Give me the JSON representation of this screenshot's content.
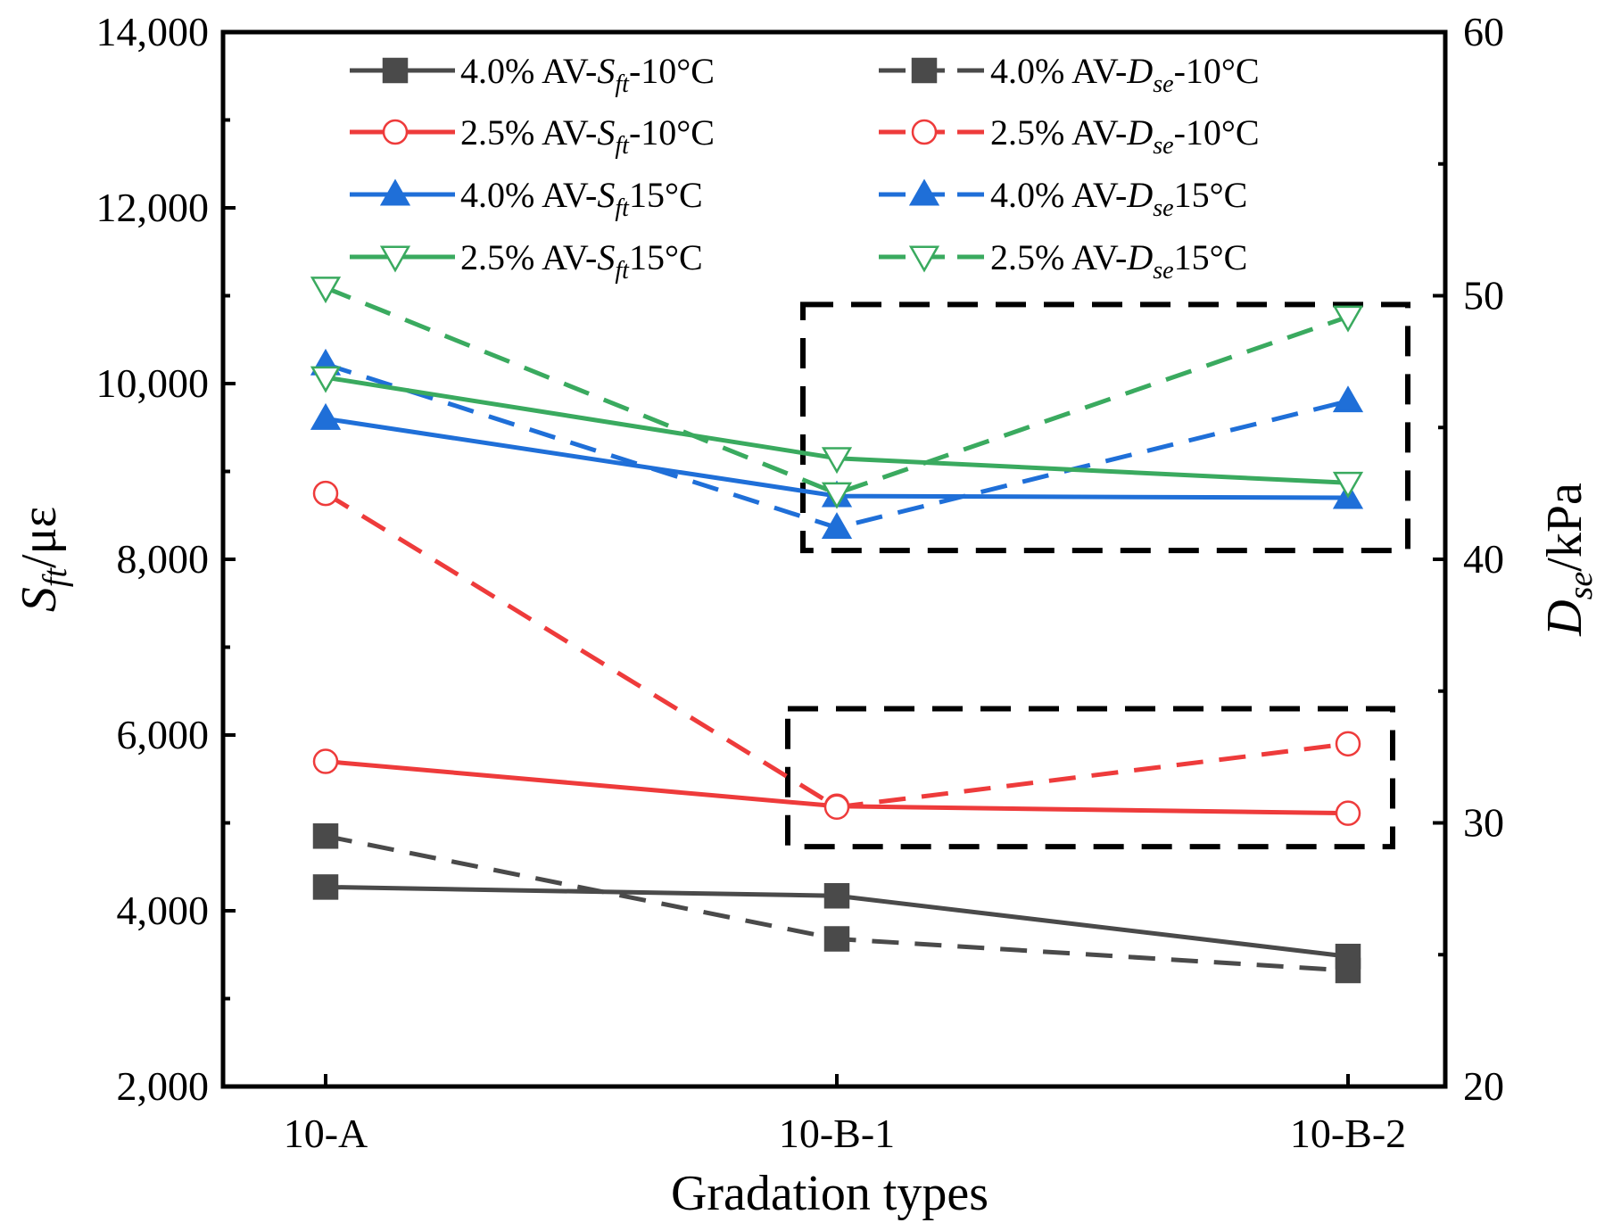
{
  "chart_data": {
    "type": "line",
    "title": "",
    "xlabel": "Gradation types",
    "ylabel_left": "S_ft/με",
    "ylabel_left_parts": {
      "main": "S",
      "sub": "ft",
      "rest": "/με"
    },
    "ylabel_right": "D_se/kPa",
    "ylabel_right_parts": {
      "main": "D",
      "sub": "se",
      "rest": "/kPa"
    },
    "categories": [
      "10-A",
      "10-B-1",
      "10-B-2"
    ],
    "ylim_left": [
      2000,
      14000
    ],
    "yticks_left": [
      2000,
      4000,
      6000,
      8000,
      10000,
      12000,
      14000
    ],
    "ytick_labels_left": [
      "2,000",
      "4,000",
      "6,000",
      "8,000",
      "10,000",
      "12,000",
      "14,000"
    ],
    "ylim_right": [
      20,
      60
    ],
    "yticks_right": [
      20,
      30,
      40,
      50,
      60
    ],
    "ytick_labels_right": [
      "20",
      "30",
      "40",
      "50",
      "60"
    ],
    "grid": false,
    "legend_position": "top",
    "series": [
      {
        "name": "4.0% AV-Sft-10°C",
        "label_parts": [
          "4.0% AV-",
          "S",
          "ft",
          "-10°C"
        ],
        "axis": "left",
        "line": "solid",
        "marker": "square",
        "filled": true,
        "color": "#4a4a4a",
        "values": [
          4270,
          4170,
          3480
        ]
      },
      {
        "name": "4.0%  AV-Dse-10°C",
        "label_parts": [
          "4.0%  AV-",
          "D",
          "se",
          "-10°C"
        ],
        "axis": "right",
        "line": "dashed",
        "marker": "square",
        "filled": true,
        "color": "#4a4a4a",
        "values": [
          29.5,
          25.6,
          24.4
        ]
      },
      {
        "name": "2.5% AV-Sft-10°C",
        "label_parts": [
          "2.5% AV-",
          "S",
          "ft",
          "-10°C"
        ],
        "axis": "left",
        "line": "solid",
        "marker": "circle",
        "filled": false,
        "color": "#ee3b3b",
        "values": [
          5700,
          5190,
          5110
        ]
      },
      {
        "name": "2.5% AV-Dse-10°C",
        "label_parts": [
          "2.5% AV-",
          "D",
          "se",
          "-10°C"
        ],
        "axis": "right",
        "line": "dashed",
        "marker": "circle",
        "filled": false,
        "color": "#ee3b3b",
        "values": [
          42.5,
          30.6,
          33.0
        ]
      },
      {
        "name": "4.0% AV-Sft15°C",
        "label_parts": [
          "4.0% AV-",
          "S",
          "ft",
          "15°C"
        ],
        "axis": "left",
        "line": "solid",
        "marker": "triangle-up",
        "filled": true,
        "color": "#1f6fd8",
        "values": [
          9600,
          8720,
          8700
        ]
      },
      {
        "name": "4.0%  AV-Dse15°C",
        "label_parts": [
          "4.0%  AV-",
          "D",
          "se",
          "15°C"
        ],
        "axis": "right",
        "line": "dashed",
        "marker": "triangle-up",
        "filled": true,
        "color": "#1f6fd8",
        "values": [
          47.4,
          41.2,
          46.0
        ]
      },
      {
        "name": "2.5% AV-Sft15°C",
        "label_parts": [
          "2.5% AV-",
          "S",
          "ft",
          "15°C"
        ],
        "axis": "left",
        "line": "solid",
        "marker": "triangle-down",
        "filled": false,
        "color": "#3aaa5f",
        "values": [
          10070,
          9150,
          8870
        ]
      },
      {
        "name": "2.5% AV-Dse15°C",
        "label_parts": [
          "2.5% AV-",
          "D",
          "se",
          "15°C"
        ],
        "axis": "right",
        "line": "dashed",
        "marker": "triangle-down",
        "filled": false,
        "color": "#3aaa5f",
        "values": [
          50.3,
          42.5,
          49.2
        ]
      }
    ],
    "annotations": [
      {
        "type": "dashed-rectangle",
        "axis": "left",
        "x_range": [
          "10-B-1",
          "10-B-2"
        ],
        "y_range": [
          8100,
          10900
        ]
      },
      {
        "type": "dashed-rectangle",
        "axis": "left",
        "x_range": [
          "10-B-1",
          "10-B-2"
        ],
        "y_range": [
          4730,
          6300
        ]
      }
    ]
  }
}
